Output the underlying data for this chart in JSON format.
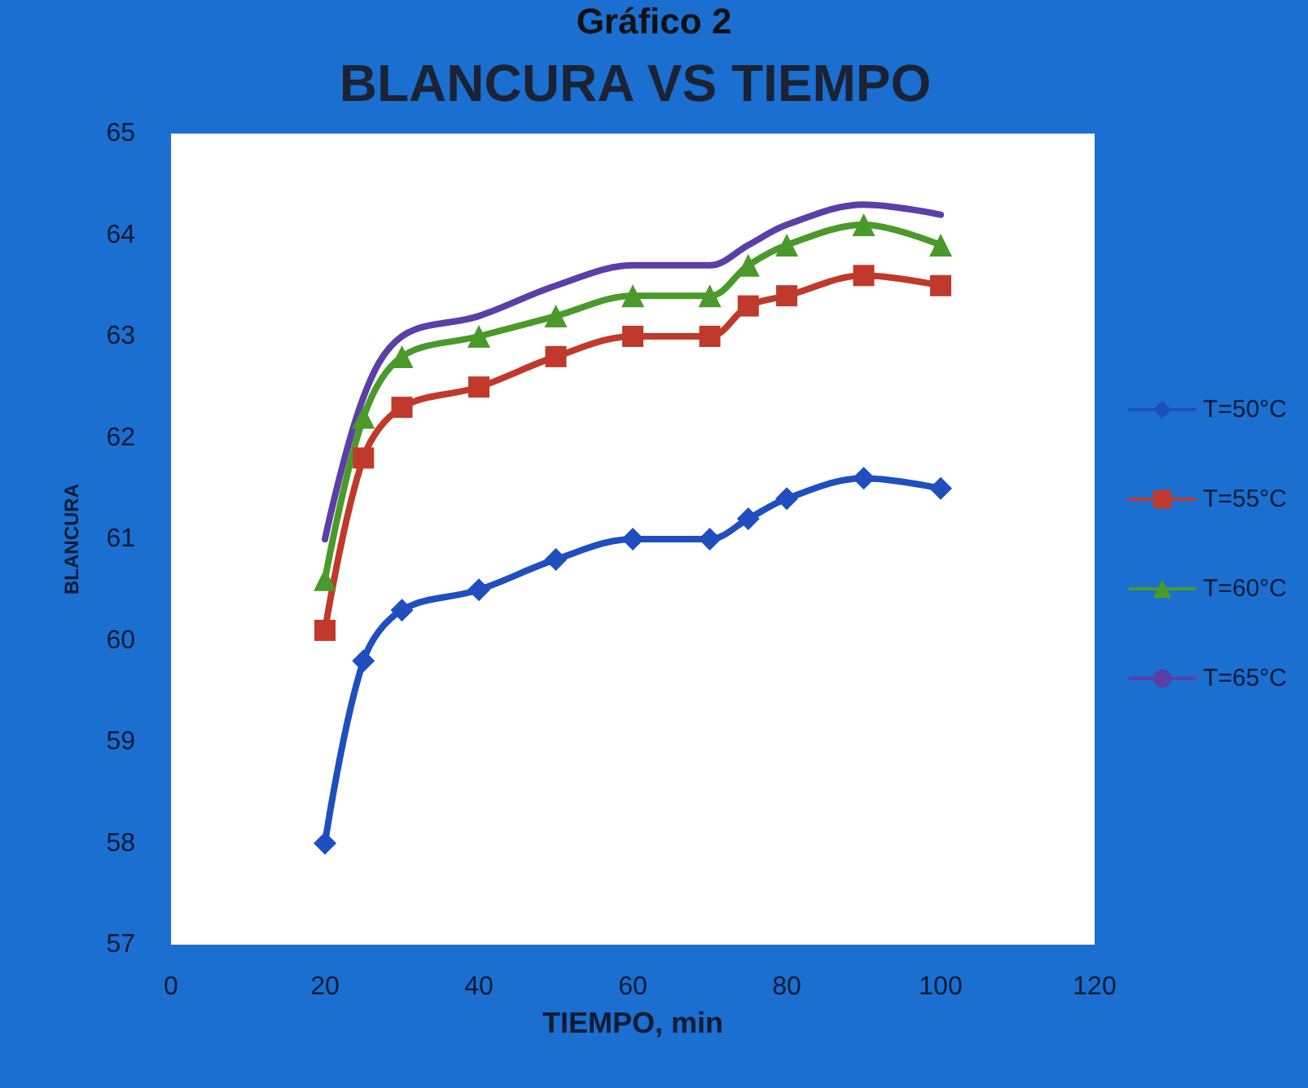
{
  "chart_data": {
    "type": "line",
    "title": "BLANCURA VS TIEMPO",
    "annotations": [
      "Gráfico 2"
    ],
    "xlabel": "TIEMPO, min",
    "ylabel": "BLANCURA",
    "x": [
      20,
      25,
      30,
      40,
      50,
      60,
      70,
      75,
      80,
      90,
      100
    ],
    "series": [
      {
        "name": "T=50°C",
        "color": "#1f4fbf",
        "marker": "diamond",
        "values": [
          58.0,
          59.8,
          60.3,
          60.5,
          60.8,
          61.0,
          61.0,
          61.2,
          61.4,
          61.6,
          61.5
        ]
      },
      {
        "name": "T=55°C",
        "color": "#c0392b",
        "marker": "square",
        "values": [
          60.1,
          61.8,
          62.3,
          62.5,
          62.8,
          63.0,
          63.0,
          63.3,
          63.4,
          63.6,
          63.5
        ]
      },
      {
        "name": "T=60°C",
        "color": "#4a9a2a",
        "marker": "triangle",
        "values": [
          60.6,
          62.2,
          62.8,
          63.0,
          63.2,
          63.4,
          63.4,
          63.7,
          63.9,
          64.1,
          63.9
        ]
      },
      {
        "name": "T=65°C",
        "color": "#5b3fa6",
        "marker": "none",
        "values": [
          61.0,
          62.4,
          63.0,
          63.2,
          63.5,
          63.7,
          63.7,
          63.9,
          64.1,
          64.3,
          64.2
        ]
      }
    ],
    "xlim": [
      0,
      120
    ],
    "xticks": [
      0,
      20,
      40,
      60,
      80,
      100,
      120
    ],
    "ylim": [
      57,
      65
    ],
    "yticks": [
      57,
      58,
      59,
      60,
      61,
      62,
      63,
      64,
      65
    ],
    "grid": false,
    "legend": "right"
  }
}
